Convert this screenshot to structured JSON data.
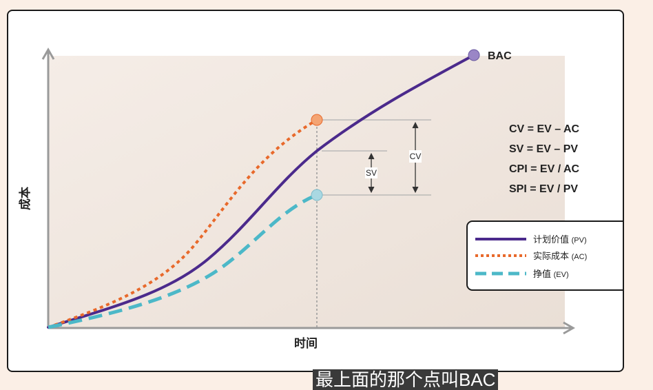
{
  "diagram": {
    "y_axis_label": "成本",
    "x_axis_label": "时间",
    "bac_label": "BAC",
    "cv_marker": "CV",
    "sv_marker": "SV",
    "formulas": [
      "CV = EV – AC",
      "SV = EV – PV",
      "CPI = EV / AC",
      "SPI = EV / PV"
    ],
    "legend": [
      {
        "label": "计划价值",
        "abbr": "(PV)",
        "color": "#4b2a8c",
        "style": "solid"
      },
      {
        "label": "实际成本",
        "abbr": "(AC)",
        "color": "#e8692b",
        "style": "dotted"
      },
      {
        "label": "挣值",
        "abbr": "(EV)",
        "color": "#4cb8c8",
        "style": "dashed"
      }
    ],
    "colors": {
      "pv": "#4b2a8c",
      "ac": "#e8692b",
      "ev": "#4cb8c8",
      "bac_point": "#9a86c6",
      "ac_point": "#f4a473",
      "ev_point": "#a9d8e2",
      "axis": "#9a9a9a"
    }
  },
  "subtitle": "最上面的那个点叫BAC"
}
